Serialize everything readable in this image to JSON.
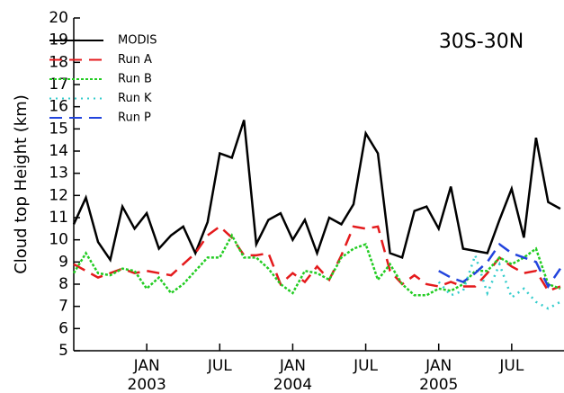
{
  "chart_data": {
    "type": "line",
    "title": "30S-30N",
    "y_label": "Cloud top Height (km)",
    "x": [
      0,
      1,
      2,
      3,
      4,
      5,
      6,
      7,
      8,
      9,
      10,
      11,
      12,
      13,
      14,
      15,
      16,
      17,
      18,
      19,
      20,
      21,
      22,
      23,
      24,
      25,
      26,
      27,
      28,
      29,
      30,
      31,
      32,
      33,
      34,
      35,
      36,
      37,
      38,
      39,
      40
    ],
    "xlim": [
      0,
      40.3
    ],
    "xticks": [
      {
        "value": 6,
        "label": "JAN"
      },
      {
        "value": 12,
        "label": "JUL"
      },
      {
        "value": 18,
        "label": "JAN"
      },
      {
        "value": 24,
        "label": "JUL"
      },
      {
        "value": 30,
        "label": "JAN"
      },
      {
        "value": 36,
        "label": "JUL"
      }
    ],
    "year_labels": [
      {
        "value": 6,
        "label": "2003"
      },
      {
        "value": 18,
        "label": "2004"
      },
      {
        "value": 30,
        "label": "2005"
      }
    ],
    "ylim": [
      5,
      20
    ],
    "yticks": [
      5,
      6,
      7,
      8,
      9,
      10,
      11,
      12,
      13,
      14,
      15,
      16,
      17,
      18,
      19,
      20
    ],
    "legend": "upper left",
    "series": [
      {
        "name": "MODIS",
        "color": "#000000",
        "dash": "solid",
        "values": [
          10.7,
          11.9,
          9.9,
          9.1,
          11.5,
          10.5,
          11.2,
          9.6,
          10.2,
          10.6,
          9.4,
          10.8,
          13.9,
          13.7,
          15.4,
          9.8,
          10.9,
          11.2,
          10.0,
          10.9,
          9.4,
          11.0,
          10.7,
          11.6,
          14.8,
          13.9,
          9.4,
          9.2,
          11.3,
          11.5,
          10.5,
          12.4,
          9.6,
          9.5,
          9.4,
          10.9,
          12.3,
          10.1,
          14.6,
          11.7,
          11.4
        ]
      },
      {
        "name": "Run A",
        "color": "#e41a1c",
        "dash": "long",
        "values": [
          8.9,
          8.6,
          8.3,
          8.5,
          8.7,
          8.5,
          8.6,
          8.5,
          8.4,
          8.9,
          9.4,
          10.2,
          10.6,
          10.1,
          9.3,
          9.3,
          9.4,
          8.0,
          8.5,
          8.1,
          8.8,
          8.2,
          9.3,
          10.6,
          10.5,
          10.6,
          8.6,
          8.0,
          8.4,
          8.0,
          7.9,
          8.1,
          7.9,
          7.9,
          8.5,
          9.2,
          8.8,
          8.5,
          8.6,
          7.7,
          7.9
        ]
      },
      {
        "name": "Run B",
        "color": "#22cc22",
        "dash": "short",
        "values": [
          8.5,
          9.4,
          8.5,
          8.4,
          8.7,
          8.6,
          7.8,
          8.3,
          7.6,
          8.0,
          8.6,
          9.2,
          9.2,
          10.2,
          9.2,
          9.2,
          8.7,
          8.0,
          7.6,
          8.6,
          8.5,
          8.2,
          9.2,
          9.6,
          9.8,
          8.2,
          8.9,
          8.0,
          7.5,
          7.5,
          7.8,
          7.7,
          8.0,
          8.6,
          8.6,
          9.2,
          8.9,
          9.2,
          9.6,
          8.0,
          7.8
        ]
      },
      {
        "name": "Run K",
        "color": "#33cccc",
        "dash": "dot",
        "values": [
          null,
          null,
          null,
          null,
          null,
          null,
          null,
          null,
          null,
          null,
          null,
          null,
          null,
          null,
          null,
          null,
          null,
          null,
          null,
          null,
          null,
          null,
          null,
          null,
          null,
          null,
          null,
          null,
          null,
          null,
          8.1,
          7.5,
          7.7,
          9.3,
          7.6,
          8.9,
          7.4,
          7.8,
          7.2,
          6.9,
          7.2
        ]
      },
      {
        "name": "Run P",
        "color": "#2244dd",
        "dash": "long",
        "values": [
          null,
          null,
          null,
          null,
          null,
          null,
          null,
          null,
          null,
          null,
          null,
          null,
          null,
          null,
          null,
          null,
          null,
          null,
          null,
          null,
          null,
          null,
          null,
          null,
          null,
          null,
          null,
          null,
          null,
          null,
          8.6,
          8.3,
          8.1,
          8.5,
          9.0,
          9.8,
          9.4,
          9.2,
          9.0,
          7.9,
          8.7
        ]
      }
    ]
  }
}
